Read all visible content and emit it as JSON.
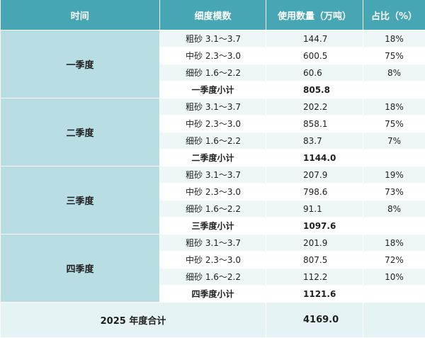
{
  "headers": [
    "时间",
    "细度模数",
    "使用数量（万吨）",
    "占比（%）"
  ],
  "quarters": [
    {
      "label": "一季度",
      "rows": [
        {
          "spec": "粗砂 3.1～3.7",
          "value": "144.7",
          "pct": "18%"
        },
        {
          "spec": "中砂 2.3～3.0",
          "value": "600.5",
          "pct": "75%"
        },
        {
          "spec": "细砂 1.6～2.2",
          "value": "60.6",
          "pct": "8%"
        }
      ],
      "subtotal_label": "一季度小计",
      "subtotal": "805.8"
    },
    {
      "label": "二季度",
      "rows": [
        {
          "spec": "粗砂 3.1～3.7",
          "value": "202.2",
          "pct": "18%"
        },
        {
          "spec": "中砂 2.3～3.0",
          "value": "858.1",
          "pct": "75%"
        },
        {
          "spec": "细砂 1.6～2.2",
          "value": "83.7",
          "pct": "7%"
        }
      ],
      "subtotal_label": "二季度小计",
      "subtotal": "1144.0"
    },
    {
      "label": "三季度",
      "rows": [
        {
          "spec": "粗砂 3.1～3.7",
          "value": "207.9",
          "pct": "19%"
        },
        {
          "spec": "中砂 2.3～3.0",
          "value": "798.6",
          "pct": "73%"
        },
        {
          "spec": "细砂 1.6～2.2",
          "value": "91.1",
          "pct": "8%"
        }
      ],
      "subtotal_label": "三季度小计",
      "subtotal": "1097.6"
    },
    {
      "label": "四季度",
      "rows": [
        {
          "spec": "粗砂 3.1～3.7",
          "value": "201.9",
          "pct": "18%"
        },
        {
          "spec": "中砂 2.3～3.0",
          "value": "807.5",
          "pct": "72%"
        },
        {
          "spec": "细砂 1.6～2.2",
          "value": "112.2",
          "pct": "10%"
        }
      ],
      "subtotal_label": "四季度小计",
      "subtotal": "1121.6"
    }
  ],
  "total": {
    "label": "2025 年度合计",
    "value": "4169.0"
  },
  "colors": {
    "header": "#46a6b3",
    "quarter_cell": "#b8dde3",
    "stripe": "#eef7f8",
    "total_row": "#e6f3f5"
  }
}
